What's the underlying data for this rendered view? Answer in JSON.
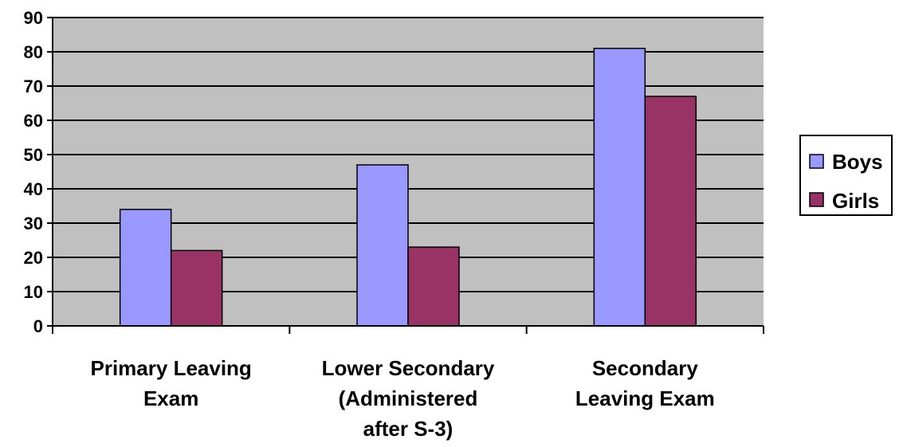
{
  "chart_data": {
    "type": "bar",
    "categories": [
      [
        "Primary Leaving",
        "Exam"
      ],
      [
        "Lower Secondary",
        "(Administered",
        "after S-3)"
      ],
      [
        "Secondary",
        "Leaving Exam"
      ]
    ],
    "series": [
      {
        "name": "Boys",
        "values": [
          34,
          47,
          81
        ],
        "color": "#9999ff"
      },
      {
        "name": "Girls",
        "values": [
          22,
          23,
          67
        ],
        "color": "#993366"
      }
    ],
    "ylim": [
      0,
      90
    ],
    "yticks": [
      "0",
      "10",
      "20",
      "30",
      "40",
      "50",
      "60",
      "70",
      "80",
      "90"
    ],
    "grid": true,
    "plot_background": "#c0c0c0",
    "legend_position": "right",
    "title": "",
    "xlabel": "",
    "ylabel": ""
  }
}
